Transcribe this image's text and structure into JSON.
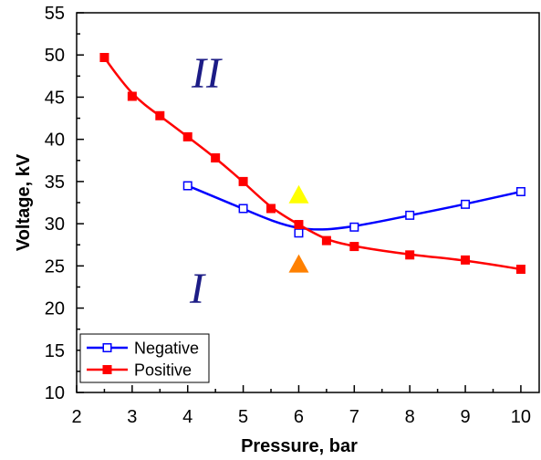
{
  "chart_data": {
    "type": "line",
    "xlabel": "Pressure, bar",
    "ylabel": "Voltage, kV",
    "xlim": [
      2,
      10.33
    ],
    "ylim": [
      10,
      55
    ],
    "xticks": [
      2,
      3,
      4,
      5,
      6,
      7,
      8,
      9,
      10
    ],
    "yticks": [
      10,
      15,
      20,
      25,
      30,
      35,
      40,
      45,
      50,
      55
    ],
    "grid": false,
    "legend_placement": "bottom-left",
    "series": [
      {
        "name": "Negative",
        "color": "#0000ff",
        "marker_fill": "#ffffff",
        "x": [
          4,
          5,
          6,
          7,
          8,
          9,
          10
        ],
        "y": [
          34.5,
          31.8,
          28.9,
          29.6,
          31.0,
          32.3,
          33.8
        ]
      },
      {
        "name": "Positive",
        "color": "#ff0000",
        "marker_fill": "#ff0000",
        "x": [
          2.5,
          3,
          3.5,
          4,
          4.5,
          5,
          5.5,
          6,
          6.5,
          7,
          8,
          9,
          10
        ],
        "y": [
          49.7,
          45.1,
          42.8,
          40.3,
          37.8,
          35.0,
          31.8,
          29.9,
          28.0,
          27.3,
          26.3,
          25.7,
          24.6
        ]
      }
    ],
    "markers": [
      {
        "x": 6,
        "y": 33.5,
        "color": "#ffff00"
      },
      {
        "x": 6,
        "y": 25.3,
        "color": "#ff8000"
      }
    ],
    "annotations": [
      {
        "text": "II",
        "color": "#1c1c86"
      },
      {
        "text": "I",
        "color": "#1c1c86"
      }
    ]
  }
}
